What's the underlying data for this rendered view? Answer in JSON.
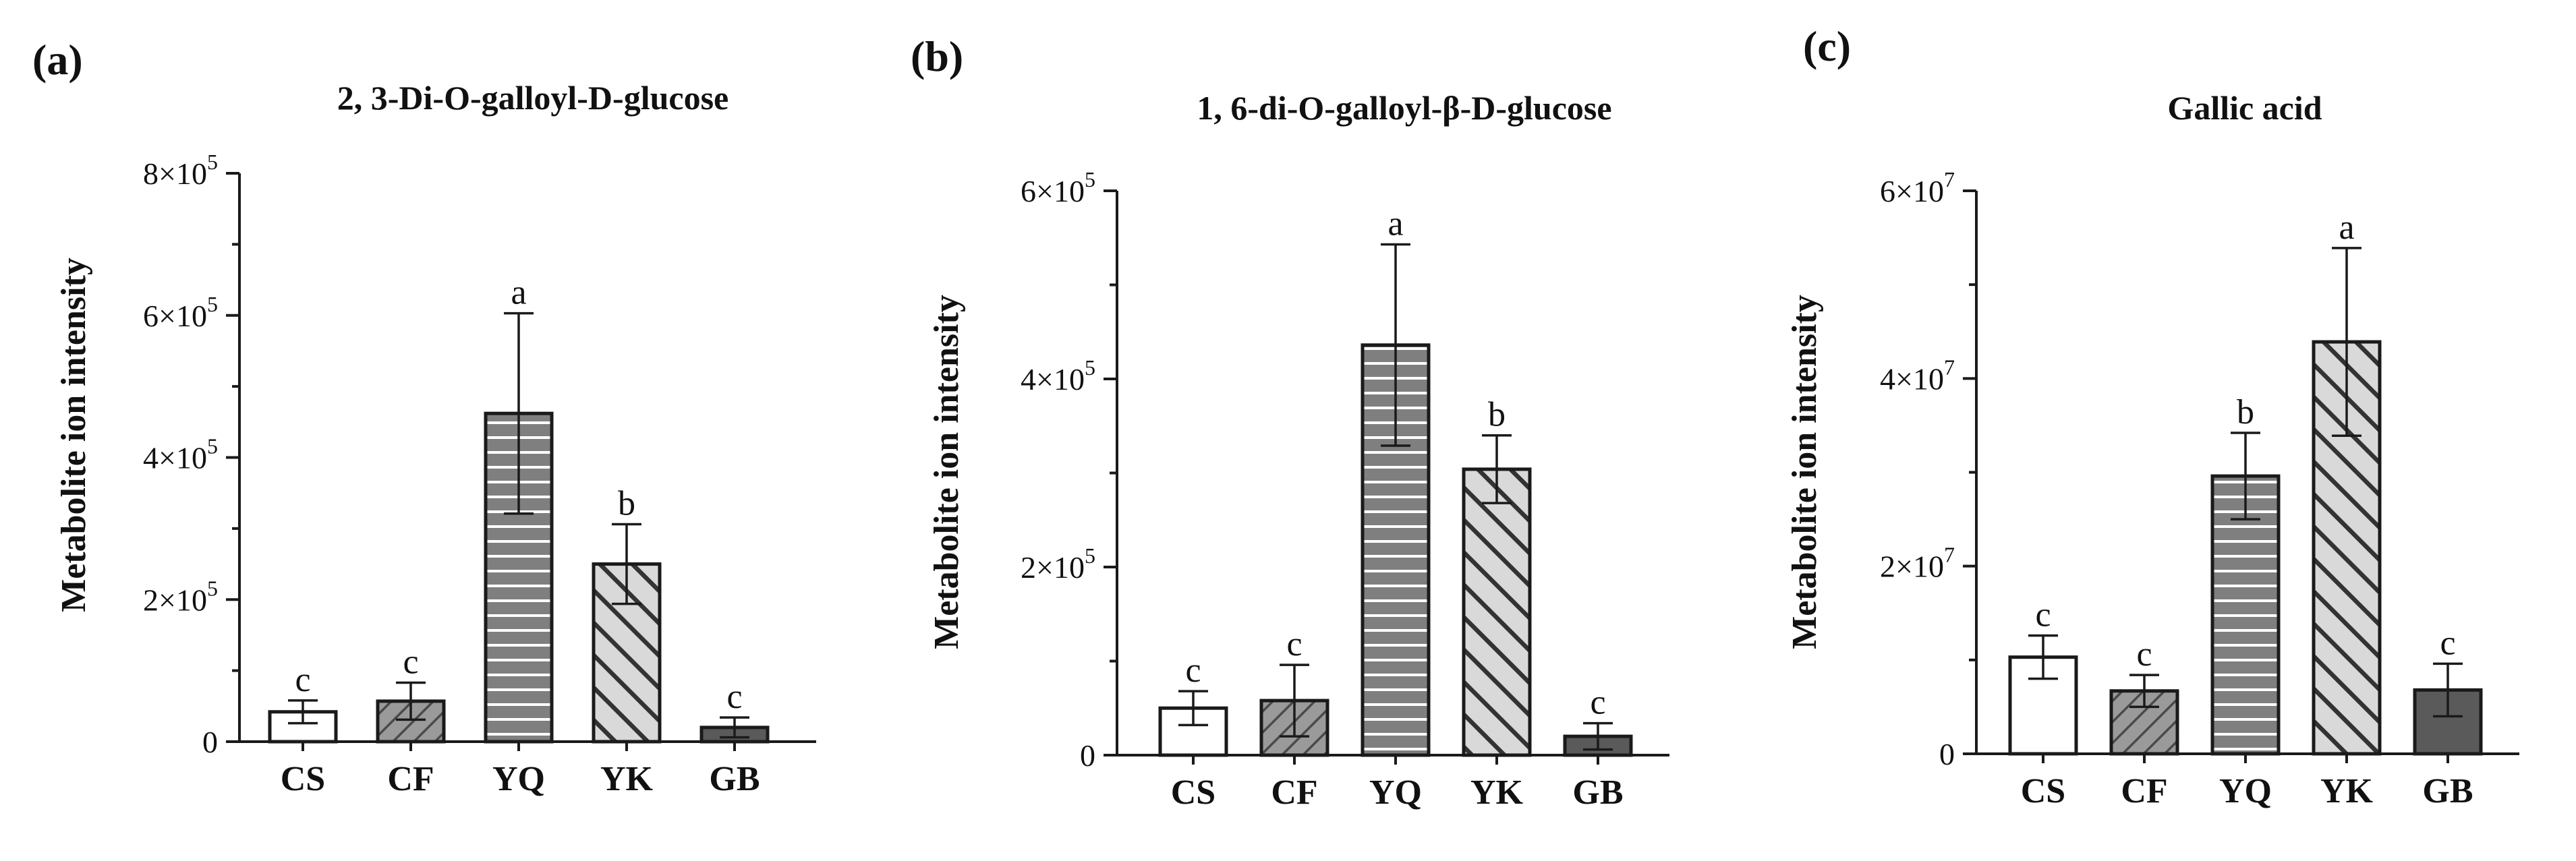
{
  "chart_data": [
    {
      "type": "bar",
      "panel_label": "(a)",
      "title": "2, 3-Di-O-galloyl-D-glucose",
      "ylabel": "Metabolite ion intensity",
      "xlabel": "",
      "categories": [
        "CS",
        "CF",
        "YQ",
        "YK",
        "GB"
      ],
      "values": [
        42000,
        57000,
        462000,
        250000,
        20000
      ],
      "errors": [
        16000,
        26000,
        141000,
        56000,
        14000
      ],
      "significance": [
        "c",
        "c",
        "a",
        "b",
        "c"
      ],
      "ylim": [
        0,
        800000
      ],
      "yticks": [
        0,
        200000,
        400000,
        600000,
        800000
      ],
      "ytick_mantissa": [
        "0",
        "2×10",
        "4×10",
        "6×10",
        "8×10"
      ],
      "ytick_exponent": [
        "",
        "5",
        "5",
        "5",
        "5"
      ],
      "grid": false
    },
    {
      "type": "bar",
      "panel_label": "(b)",
      "title": "1, 6-di-O-galloyl-β-D-glucose",
      "ylabel": "Metabolite ion intensity",
      "xlabel": "",
      "categories": [
        "CS",
        "CF",
        "YQ",
        "YK",
        "GB"
      ],
      "values": [
        50000,
        58000,
        436000,
        304000,
        20000
      ],
      "errors": [
        18000,
        38000,
        107000,
        36000,
        14000
      ],
      "significance": [
        "c",
        "c",
        "a",
        "b",
        "c"
      ],
      "ylim": [
        0,
        600000
      ],
      "yticks": [
        0,
        200000,
        400000,
        600000
      ],
      "ytick_mantissa": [
        "0",
        "2×10",
        "4×10",
        "6×10"
      ],
      "ytick_exponent": [
        "",
        "5",
        "5",
        "5"
      ],
      "grid": false
    },
    {
      "type": "bar",
      "panel_label": "(c)",
      "title": "Gallic acid",
      "ylabel": "Metabolite ion intensity",
      "xlabel": "",
      "categories": [
        "CS",
        "CF",
        "YQ",
        "YK",
        "GB"
      ],
      "values": [
        10300000,
        6700000,
        29600000,
        43900000,
        6800000
      ],
      "errors": [
        2300000,
        1700000,
        4600000,
        10000000,
        2800000
      ],
      "significance": [
        "c",
        "c",
        "b",
        "a",
        "c"
      ],
      "ylim": [
        0,
        60000000
      ],
      "yticks": [
        0,
        20000000,
        40000000,
        60000000
      ],
      "ytick_mantissa": [
        "0",
        "2×10",
        "4×10",
        "6×10"
      ],
      "ytick_exponent": [
        "",
        "7",
        "7",
        "7"
      ],
      "grid": false
    }
  ],
  "styles": {
    "CS": {
      "fill": "#ffffff",
      "pattern": "none"
    },
    "CF": {
      "fill": "#9a9a9a",
      "pattern": "back-diagonal-stripes",
      "stripe": "#4a4a4a"
    },
    "YQ": {
      "fill": "#7f7f7f",
      "pattern": "horizontal-stripes",
      "stripe": "#ffffff"
    },
    "YK": {
      "fill": "#d9d9d9",
      "pattern": "diagonal-stripes",
      "stripe": "#333333"
    },
    "GB": {
      "fill": "#5a5a5a",
      "pattern": "none"
    }
  }
}
